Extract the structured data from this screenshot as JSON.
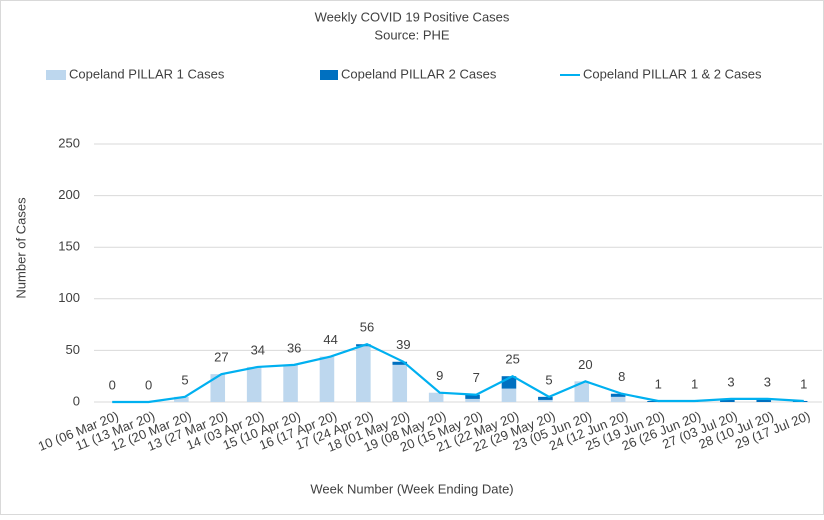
{
  "chart_data": {
    "type": "bar_line",
    "title": "Weekly COVID 19 Positive Cases",
    "subtitle": "Source: PHE",
    "x_label": "Week Number (Week Ending Date)",
    "y_label": "Number of Cases",
    "categories": [
      "10 (06 Mar 20)",
      "11 (13 Mar 20)",
      "12 (20 Mar 20)",
      "13 (27 Mar 20)",
      "14 (03 Apr 20)",
      "15 (10 Apr 20)",
      "16 (17 Apr 20)",
      "17 (24 Apr 20)",
      "18 (01 May 20)",
      "19 (08 May 20)",
      "20 (15 May 20)",
      "21 (22 May 20)",
      "22 (29 May 20)",
      "23 (05 Jun 20)",
      "24 (12 Jun 20)",
      "25 (19 Jun 20)",
      "26 (26 Jun 20)",
      "27 (03 Jul 20)",
      "28 (10 Jul 20)",
      "29 (17 Jul 20)"
    ],
    "series": [
      {
        "name": "Copeland PILLAR 1 Cases",
        "color": "#bdd7ee",
        "kind": "bar",
        "values": [
          0,
          0,
          5,
          27,
          34,
          36,
          44,
          54,
          36,
          9,
          3,
          13,
          2,
          20,
          5,
          0,
          0,
          0,
          0,
          0
        ]
      },
      {
        "name": "Copeland PILLAR 2 Cases",
        "color": "#0070c0",
        "kind": "bar",
        "values": [
          0,
          0,
          0,
          0,
          0,
          0,
          0,
          2,
          3,
          0,
          4,
          12,
          3,
          0,
          3,
          1,
          1,
          3,
          3,
          1
        ]
      },
      {
        "name": "Copeland PILLAR 1 & 2 Cases",
        "color": "#00b0f0",
        "kind": "line",
        "values": [
          0,
          0,
          5,
          27,
          34,
          36,
          44,
          56,
          39,
          9,
          7,
          25,
          5,
          20,
          8,
          1,
          1,
          3,
          3,
          1
        ]
      }
    ],
    "ylim": [
      0,
      250
    ],
    "yticks": [
      0,
      50,
      100,
      150,
      200,
      250
    ],
    "grid": true
  }
}
